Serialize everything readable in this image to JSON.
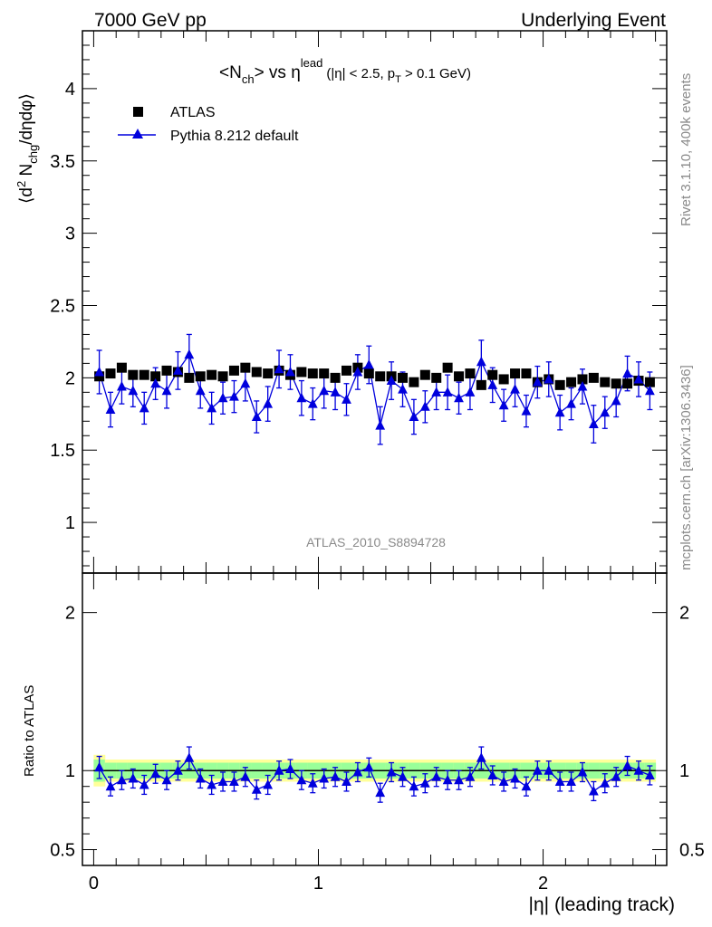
{
  "header": {
    "left": "7000 GeV pp",
    "right": "Underlying Event"
  },
  "plot_title": {
    "main": "<N",
    "main_sub": "ch",
    "main_mid": "> vs η",
    "main_sup": "lead",
    "cut_a": "(|η| < 2.5, p",
    "cut_sub": "T",
    "cut_b": " > 0.1 GeV)"
  },
  "side_text": {
    "rivet": "Rivet 3.1.10,  400k events",
    "mcplots": "mcplots.cern.ch [arXiv:1306.3436]"
  },
  "watermark": "ATLAS_2010_S8894728",
  "top_ylabel": {
    "a": "⟨d",
    "sup": "2",
    "b": " N",
    "sub": "chg",
    "c": "/dηdφ⟩"
  },
  "bottom_ylabel": "Ratio to ATLAS",
  "xlabel": "|η| (leading track)",
  "legend": {
    "atlas": "ATLAS",
    "pythia": "Pythia 8.212 default"
  },
  "colors": {
    "data": "#000000",
    "mc": "#0000dd",
    "band_inner": "#99ff99",
    "band_outer": "#ffff99"
  },
  "chart_data": [
    {
      "type": "scatter",
      "panel": "main",
      "xlim": [
        -0.05,
        2.55
      ],
      "ylim": [
        0.65,
        4.4
      ],
      "yticks": [
        1,
        1.5,
        2,
        2.5,
        3,
        3.5,
        4
      ],
      "ytick_labels": [
        "1",
        "1.5",
        "2",
        "2.5",
        "3",
        "3.5",
        "4"
      ],
      "legend_position": "top-left",
      "series": [
        {
          "name": "ATLAS",
          "marker": "square",
          "x": [
            0.025,
            0.075,
            0.125,
            0.175,
            0.225,
            0.275,
            0.325,
            0.375,
            0.425,
            0.475,
            0.525,
            0.575,
            0.625,
            0.675,
            0.725,
            0.775,
            0.825,
            0.875,
            0.925,
            0.975,
            1.025,
            1.075,
            1.125,
            1.175,
            1.225,
            1.275,
            1.325,
            1.375,
            1.425,
            1.475,
            1.525,
            1.575,
            1.625,
            1.675,
            1.725,
            1.775,
            1.825,
            1.875,
            1.925,
            1.975,
            2.025,
            2.075,
            2.125,
            2.175,
            2.225,
            2.275,
            2.325,
            2.375,
            2.425,
            2.475
          ],
          "y": [
            2.01,
            2.03,
            2.07,
            2.02,
            2.02,
            2.01,
            2.05,
            2.04,
            2.0,
            2.01,
            2.02,
            2.01,
            2.05,
            2.07,
            2.04,
            2.03,
            2.05,
            2.02,
            2.04,
            2.03,
            2.03,
            2.0,
            2.05,
            2.07,
            2.03,
            2.01,
            2.01,
            2.0,
            1.97,
            2.02,
            2.0,
            2.07,
            2.01,
            2.03,
            1.95,
            2.02,
            1.99,
            2.03,
            2.03,
            1.97,
            1.99,
            1.95,
            1.97,
            1.99,
            2.0,
            1.97,
            1.96,
            1.96,
            1.98,
            1.97
          ]
        },
        {
          "name": "Pythia 8.212 default",
          "marker": "triangle",
          "x": [
            0.025,
            0.075,
            0.125,
            0.175,
            0.225,
            0.275,
            0.325,
            0.375,
            0.425,
            0.475,
            0.525,
            0.575,
            0.625,
            0.675,
            0.725,
            0.775,
            0.825,
            0.875,
            0.925,
            0.975,
            1.025,
            1.075,
            1.125,
            1.175,
            1.225,
            1.275,
            1.325,
            1.375,
            1.425,
            1.475,
            1.525,
            1.575,
            1.625,
            1.675,
            1.725,
            1.775,
            1.825,
            1.875,
            1.925,
            1.975,
            2.025,
            2.075,
            2.125,
            2.175,
            2.225,
            2.275,
            2.325,
            2.375,
            2.425,
            2.475
          ],
          "y": [
            2.04,
            1.78,
            1.94,
            1.91,
            1.79,
            1.96,
            1.91,
            2.05,
            2.16,
            1.91,
            1.79,
            1.86,
            1.87,
            1.96,
            1.73,
            1.82,
            2.06,
            2.04,
            1.86,
            1.82,
            1.91,
            1.9,
            1.85,
            2.04,
            2.09,
            1.67,
            1.98,
            1.92,
            1.73,
            1.8,
            1.9,
            1.9,
            1.86,
            1.9,
            2.11,
            1.95,
            1.81,
            1.92,
            1.77,
            1.97,
            1.99,
            1.76,
            1.82,
            1.94,
            1.68,
            1.76,
            1.84,
            2.03,
            1.99,
            1.91
          ],
          "yerr": [
            0.15,
            0.12,
            0.12,
            0.11,
            0.11,
            0.11,
            0.12,
            0.13,
            0.14,
            0.12,
            0.11,
            0.11,
            0.11,
            0.12,
            0.11,
            0.12,
            0.13,
            0.12,
            0.12,
            0.11,
            0.12,
            0.12,
            0.11,
            0.12,
            0.13,
            0.13,
            0.13,
            0.12,
            0.12,
            0.11,
            0.12,
            0.12,
            0.11,
            0.12,
            0.15,
            0.12,
            0.11,
            0.12,
            0.11,
            0.11,
            0.12,
            0.12,
            0.11,
            0.12,
            0.13,
            0.11,
            0.11,
            0.12,
            0.12,
            0.13
          ]
        }
      ]
    },
    {
      "type": "scatter",
      "panel": "ratio",
      "xlim": [
        -0.05,
        2.55
      ],
      "xticks": [
        0,
        1,
        2
      ],
      "xtick_labels": [
        "0",
        "1",
        "2"
      ],
      "ylim": [
        0.4,
        2.25
      ],
      "yticks": [
        0.5,
        1,
        2
      ],
      "ytick_labels": [
        "0.5",
        "1",
        "2"
      ],
      "reference_line": 1,
      "bands": {
        "inner_halfwidth": [
          0.07,
          0.05,
          0.05,
          0.05,
          0.05,
          0.05,
          0.05,
          0.05,
          0.05,
          0.05,
          0.05,
          0.05,
          0.05,
          0.05,
          0.05,
          0.05,
          0.05,
          0.05,
          0.05,
          0.05,
          0.05,
          0.05,
          0.05,
          0.05,
          0.05,
          0.05,
          0.05,
          0.05,
          0.05,
          0.05,
          0.05,
          0.05,
          0.05,
          0.05,
          0.05,
          0.05,
          0.05,
          0.05,
          0.05,
          0.05,
          0.05,
          0.05,
          0.05,
          0.05,
          0.05,
          0.05,
          0.05,
          0.05,
          0.05,
          0.05
        ],
        "outer_halfwidth": [
          0.1,
          0.07,
          0.07,
          0.07,
          0.07,
          0.07,
          0.07,
          0.07,
          0.07,
          0.07,
          0.07,
          0.07,
          0.07,
          0.07,
          0.07,
          0.07,
          0.07,
          0.07,
          0.07,
          0.07,
          0.07,
          0.07,
          0.07,
          0.07,
          0.07,
          0.07,
          0.07,
          0.07,
          0.07,
          0.07,
          0.07,
          0.07,
          0.07,
          0.07,
          0.07,
          0.07,
          0.07,
          0.07,
          0.07,
          0.07,
          0.07,
          0.07,
          0.07,
          0.07,
          0.07,
          0.07,
          0.07,
          0.07,
          0.07,
          0.07
        ]
      },
      "series": [
        {
          "name": "Pythia 8.212 default",
          "marker": "triangle",
          "x": [
            0.025,
            0.075,
            0.125,
            0.175,
            0.225,
            0.275,
            0.325,
            0.375,
            0.425,
            0.475,
            0.525,
            0.575,
            0.625,
            0.675,
            0.725,
            0.775,
            0.825,
            0.875,
            0.925,
            0.975,
            1.025,
            1.075,
            1.125,
            1.175,
            1.225,
            1.275,
            1.325,
            1.375,
            1.425,
            1.475,
            1.525,
            1.575,
            1.625,
            1.675,
            1.725,
            1.775,
            1.825,
            1.875,
            1.925,
            1.975,
            2.025,
            2.075,
            2.125,
            2.175,
            2.225,
            2.275,
            2.325,
            2.375,
            2.425,
            2.475
          ],
          "y": [
            1.02,
            0.9,
            0.94,
            0.95,
            0.91,
            0.98,
            0.94,
            1.0,
            1.08,
            0.95,
            0.91,
            0.93,
            0.93,
            0.96,
            0.88,
            0.91,
            1.0,
            1.01,
            0.94,
            0.92,
            0.95,
            0.96,
            0.93,
            0.99,
            1.02,
            0.86,
            0.99,
            0.96,
            0.9,
            0.92,
            0.96,
            0.94,
            0.94,
            0.96,
            1.08,
            0.97,
            0.93,
            0.95,
            0.9,
            1.0,
            1.0,
            0.93,
            0.93,
            0.99,
            0.87,
            0.92,
            0.96,
            1.03,
            1.0,
            0.97
          ],
          "yerr": [
            0.07,
            0.06,
            0.06,
            0.06,
            0.06,
            0.06,
            0.06,
            0.06,
            0.07,
            0.06,
            0.06,
            0.06,
            0.06,
            0.06,
            0.06,
            0.06,
            0.06,
            0.06,
            0.06,
            0.06,
            0.06,
            0.06,
            0.06,
            0.06,
            0.06,
            0.06,
            0.06,
            0.06,
            0.06,
            0.06,
            0.06,
            0.06,
            0.06,
            0.06,
            0.07,
            0.06,
            0.06,
            0.06,
            0.06,
            0.06,
            0.06,
            0.06,
            0.06,
            0.06,
            0.06,
            0.06,
            0.06,
            0.06,
            0.06,
            0.06
          ]
        }
      ]
    }
  ]
}
